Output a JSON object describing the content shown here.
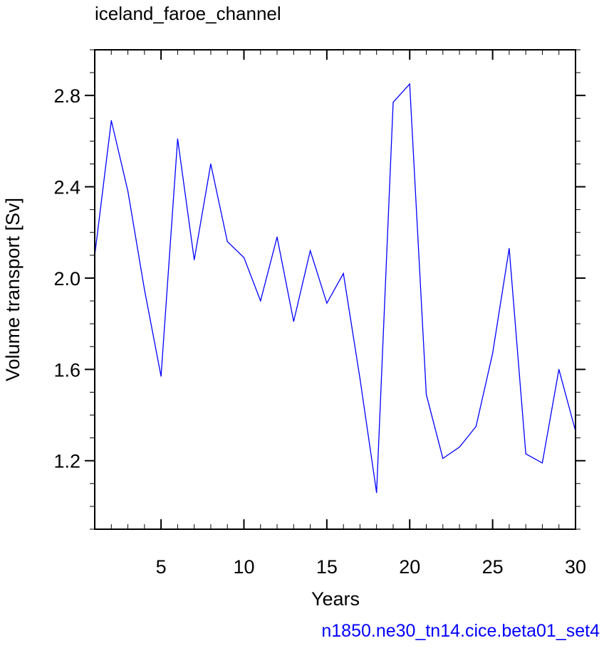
{
  "chart_data": {
    "type": "line",
    "title": "iceland_faroe_channel",
    "xlabel": "Years",
    "ylabel": "Volume transport [Sv]",
    "subtitle": "n1850.ne30_tn14.cice.beta01_set4",
    "xlim": [
      1,
      30
    ],
    "ylim": [
      0.9,
      3.0
    ],
    "xticks": [
      5,
      10,
      15,
      20,
      25,
      30
    ],
    "xtick_labels": [
      "5",
      "10",
      "15",
      "20",
      "25",
      "30"
    ],
    "yticks": [
      1.2,
      1.6,
      2.0,
      2.4,
      2.8
    ],
    "ytick_labels": [
      "1.2",
      "1.6",
      "2.0",
      "2.4",
      "2.8"
    ],
    "grid": false,
    "series": [
      {
        "color": "#0000ff",
        "x": [
          1,
          2,
          3,
          4,
          5,
          6,
          7,
          8,
          9,
          10,
          11,
          12,
          13,
          14,
          15,
          16,
          17,
          18,
          19,
          20,
          21,
          22,
          23,
          24,
          25,
          26,
          27,
          28,
          29,
          30
        ],
        "values": [
          2.1,
          2.69,
          2.38,
          1.95,
          1.57,
          2.61,
          2.08,
          2.5,
          2.16,
          2.09,
          1.9,
          2.18,
          1.81,
          2.12,
          1.89,
          2.02,
          1.56,
          1.06,
          2.77,
          2.85,
          1.49,
          1.21,
          1.26,
          1.35,
          1.67,
          2.13,
          1.23,
          1.19,
          1.6,
          1.33
        ]
      }
    ]
  }
}
